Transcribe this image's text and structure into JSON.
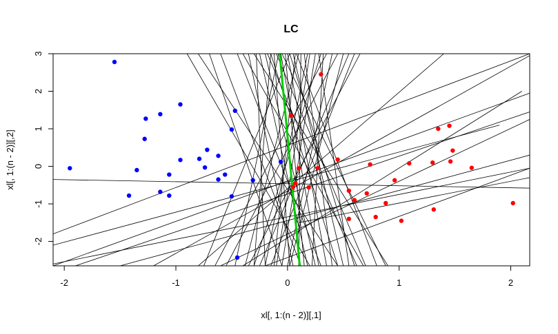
{
  "chart_data": {
    "type": "scatter",
    "title": "LC",
    "xlabel": "xl[, 1:(n - 2)][,1]",
    "ylabel": "xl[, 1:(n - 2)][,2]",
    "xlim": [
      -2.1,
      2.17
    ],
    "ylim": [
      -2.65,
      3.0
    ],
    "xticks": [
      -2,
      -1,
      0,
      1,
      2
    ],
    "xtick_labels": [
      "-2",
      "-1",
      "0",
      "1",
      "2"
    ],
    "yticks": [
      -2,
      -1,
      0,
      1,
      2,
      3
    ],
    "ytick_labels": [
      "-2",
      "-1",
      "0",
      "1",
      "2",
      "3"
    ],
    "grid": false,
    "series": [
      {
        "color": "#0000ff",
        "points": [
          [
            -1.55,
            2.78
          ],
          [
            -1.95,
            -0.05
          ],
          [
            -1.42,
            -0.78
          ],
          [
            -1.35,
            -0.1
          ],
          [
            -1.27,
            1.27
          ],
          [
            -1.28,
            0.73
          ],
          [
            -1.14,
            1.39
          ],
          [
            -1.14,
            -0.68
          ],
          [
            -1.06,
            -0.22
          ],
          [
            -1.06,
            -0.78
          ],
          [
            -0.96,
            1.65
          ],
          [
            -0.96,
            0.17
          ],
          [
            -0.79,
            0.2
          ],
          [
            -0.74,
            -0.03
          ],
          [
            -0.72,
            0.44
          ],
          [
            -0.62,
            -0.35
          ],
          [
            -0.62,
            0.28
          ],
          [
            -0.56,
            -0.22
          ],
          [
            -0.5,
            0.98
          ],
          [
            -0.47,
            1.48
          ],
          [
            -0.5,
            -0.8
          ],
          [
            -0.31,
            -0.37
          ],
          [
            -0.06,
            0.12
          ],
          [
            -0.45,
            -2.43
          ]
        ]
      },
      {
        "color": "#ff0000",
        "points": [
          [
            0.3,
            2.45
          ],
          [
            0.03,
            1.35
          ],
          [
            0.1,
            -0.05
          ],
          [
            0.07,
            -0.45
          ],
          [
            0.05,
            -0.55
          ],
          [
            0.19,
            -0.56
          ],
          [
            0.27,
            -0.05
          ],
          [
            0.45,
            0.18
          ],
          [
            0.55,
            -0.65
          ],
          [
            0.55,
            -1.4
          ],
          [
            0.6,
            -0.9
          ],
          [
            0.71,
            -0.72
          ],
          [
            0.74,
            0.05
          ],
          [
            0.79,
            -1.35
          ],
          [
            0.88,
            -0.98
          ],
          [
            0.96,
            -0.37
          ],
          [
            1.02,
            -1.45
          ],
          [
            1.09,
            0.08
          ],
          [
            1.3,
            0.1
          ],
          [
            1.31,
            -1.15
          ],
          [
            1.35,
            1.0
          ],
          [
            1.45,
            1.08
          ],
          [
            1.46,
            0.13
          ],
          [
            1.48,
            0.42
          ],
          [
            1.65,
            -0.04
          ],
          [
            2.02,
            -0.98
          ]
        ]
      }
    ],
    "lines": [
      [
        [
          -0.08,
          3.0
        ],
        [
          -0.47,
          -2.65
        ]
      ],
      [
        [
          0.02,
          3.0
        ],
        [
          0.6,
          -2.65
        ]
      ],
      [
        [
          -0.15,
          3.0
        ],
        [
          0.45,
          -2.65
        ]
      ],
      [
        [
          0.3,
          3.0
        ],
        [
          -0.3,
          -2.65
        ]
      ],
      [
        [
          -0.05,
          3.0
        ],
        [
          0.88,
          -2.65
        ]
      ],
      [
        [
          0.07,
          3.0
        ],
        [
          -0.12,
          -2.65
        ]
      ],
      [
        [
          -0.2,
          3.0
        ],
        [
          0.25,
          -2.65
        ]
      ],
      [
        [
          0.12,
          3.0
        ],
        [
          0.1,
          -2.65
        ]
      ],
      [
        [
          -0.1,
          3.0
        ],
        [
          0.7,
          -2.65
        ]
      ],
      [
        [
          0.25,
          3.0
        ],
        [
          -0.05,
          -2.65
        ]
      ],
      [
        [
          0.0,
          3.0
        ],
        [
          0.35,
          -2.65
        ]
      ],
      [
        [
          -0.12,
          3.0
        ],
        [
          0.02,
          -2.65
        ]
      ],
      [
        [
          0.18,
          3.0
        ],
        [
          -0.2,
          -2.65
        ]
      ],
      [
        [
          0.05,
          3.0
        ],
        [
          0.5,
          -2.65
        ]
      ],
      [
        [
          -0.25,
          3.0
        ],
        [
          0.18,
          -2.65
        ]
      ],
      [
        [
          0.1,
          3.0
        ],
        [
          -0.38,
          -2.65
        ]
      ],
      [
        [
          -0.02,
          3.0
        ],
        [
          0.15,
          -2.65
        ]
      ],
      [
        [
          0.32,
          3.0
        ],
        [
          0.22,
          -2.65
        ]
      ],
      [
        [
          -0.18,
          3.0
        ],
        [
          0.62,
          -2.65
        ]
      ],
      [
        [
          0.08,
          3.0
        ],
        [
          0.8,
          -2.65
        ]
      ],
      [
        [
          -0.35,
          3.0
        ],
        [
          0.05,
          -2.65
        ]
      ],
      [
        [
          0.2,
          3.0
        ],
        [
          -0.1,
          -2.65
        ]
      ],
      [
        [
          -0.06,
          3.0
        ],
        [
          0.28,
          -2.65
        ]
      ],
      [
        [
          0.15,
          3.0
        ],
        [
          0.4,
          -2.65
        ]
      ],
      [
        [
          -0.8,
          3.0
        ],
        [
          0.45,
          -2.65
        ]
      ],
      [
        [
          0.45,
          3.0
        ],
        [
          -0.55,
          -2.65
        ]
      ],
      [
        [
          -0.3,
          3.0
        ],
        [
          0.9,
          -2.65
        ]
      ],
      [
        [
          0.55,
          3.0
        ],
        [
          -0.25,
          -2.65
        ]
      ],
      [
        [
          -0.45,
          3.0
        ],
        [
          0.3,
          -2.65
        ]
      ],
      [
        [
          0.35,
          3.0
        ],
        [
          -0.65,
          -2.65
        ]
      ],
      [
        [
          0.02,
          3.0
        ],
        [
          -0.75,
          -2.65
        ]
      ],
      [
        [
          -0.6,
          3.0
        ],
        [
          0.12,
          -2.65
        ]
      ],
      [
        [
          0.4,
          3.0
        ],
        [
          0.0,
          -2.65
        ]
      ],
      [
        [
          -0.28,
          3.0
        ],
        [
          -0.2,
          -2.65
        ]
      ],
      [
        [
          0.28,
          3.0
        ],
        [
          0.55,
          -2.65
        ]
      ],
      [
        [
          -0.15,
          3.0
        ],
        [
          -0.3,
          -2.65
        ]
      ],
      [
        [
          0.5,
          3.0
        ],
        [
          0.02,
          -2.65
        ]
      ],
      [
        [
          -0.4,
          3.0
        ],
        [
          0.68,
          -2.65
        ]
      ],
      [
        [
          0.6,
          3.0
        ],
        [
          -0.15,
          -2.65
        ]
      ],
      [
        [
          -0.7,
          3.0
        ],
        [
          -0.05,
          -2.65
        ]
      ],
      [
        [
          0.65,
          3.0
        ],
        [
          -0.35,
          -2.65
        ]
      ],
      [
        [
          -0.9,
          3.0
        ],
        [
          0.2,
          -2.65
        ]
      ],
      [
        [
          -2.1,
          -1.8
        ],
        [
          2.17,
          3.0
        ]
      ],
      [
        [
          -2.1,
          -2.65
        ],
        [
          2.17,
          1.95
        ]
      ],
      [
        [
          -1.9,
          -2.65
        ],
        [
          2.17,
          1.45
        ]
      ],
      [
        [
          -2.1,
          -2.6
        ],
        [
          2.17,
          -0.05
        ]
      ],
      [
        [
          -2.1,
          -0.35
        ],
        [
          2.17,
          -0.58
        ]
      ],
      [
        [
          -0.6,
          -2.65
        ],
        [
          2.17,
          1.25
        ]
      ],
      [
        [
          -1.2,
          -2.65
        ],
        [
          2.17,
          2.95
        ]
      ],
      [
        [
          -2.1,
          -2.1
        ],
        [
          1.9,
          1.1
        ]
      ],
      [
        [
          -0.2,
          -2.65
        ],
        [
          2.17,
          -0.05
        ]
      ],
      [
        [
          -1.5,
          -2.65
        ],
        [
          2.17,
          0.3
        ]
      ],
      [
        [
          -0.4,
          -2.65
        ],
        [
          2.1,
          2.0
        ]
      ],
      [
        [
          0.1,
          -1.5
        ],
        [
          2.17,
          -0.3
        ]
      ],
      [
        [
          -0.8,
          -2.65
        ],
        [
          1.4,
          3.0
        ]
      ]
    ],
    "boundary": {
      "color": "#00cc00",
      "points": [
        [
          -0.07,
          3.0
        ],
        [
          0.11,
          -2.65
        ]
      ]
    }
  }
}
